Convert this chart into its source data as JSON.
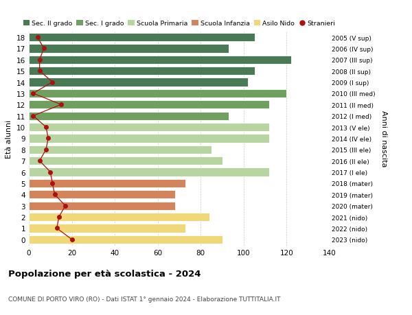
{
  "ages": [
    18,
    17,
    16,
    15,
    14,
    13,
    12,
    11,
    10,
    9,
    8,
    7,
    6,
    5,
    4,
    3,
    2,
    1,
    0
  ],
  "bar_values": [
    105,
    93,
    122,
    105,
    102,
    120,
    112,
    93,
    112,
    112,
    85,
    90,
    112,
    73,
    68,
    68,
    84,
    73,
    90
  ],
  "bar_colors": [
    "#4a7a55",
    "#4a7a55",
    "#4a7a55",
    "#4a7a55",
    "#4a7a55",
    "#6fa060",
    "#6fa060",
    "#6fa060",
    "#b8d4a0",
    "#b8d4a0",
    "#b8d4a0",
    "#b8d4a0",
    "#b8d4a0",
    "#d4845a",
    "#d4845a",
    "#d4845a",
    "#f0d878",
    "#f0d878",
    "#f0d878"
  ],
  "stranieri": [
    4,
    7,
    5,
    5,
    11,
    2,
    15,
    2,
    8,
    9,
    8,
    5,
    10,
    11,
    12,
    17,
    14,
    13,
    20
  ],
  "right_labels": [
    "2005 (V sup)",
    "2006 (IV sup)",
    "2007 (III sup)",
    "2008 (II sup)",
    "2009 (I sup)",
    "2010 (III med)",
    "2011 (II med)",
    "2012 (I med)",
    "2013 (V ele)",
    "2014 (IV ele)",
    "2015 (III ele)",
    "2016 (II ele)",
    "2017 (I ele)",
    "2018 (mater)",
    "2019 (mater)",
    "2020 (mater)",
    "2021 (nido)",
    "2022 (nido)",
    "2023 (nido)"
  ],
  "legend_labels": [
    "Sec. II grado",
    "Sec. I grado",
    "Scuola Primaria",
    "Scuola Infanzia",
    "Asilo Nido",
    "Stranieri"
  ],
  "legend_colors": [
    "#4a7a55",
    "#6fa060",
    "#b8d4a0",
    "#d4845a",
    "#f0d878",
    "#aa1111"
  ],
  "right_ylabel": "Anni di nascita",
  "left_ylabel": "Età alunni",
  "title": "Popolazione per età scolastica - 2024",
  "subtitle": "COMUNE DI PORTO VIRO (RO) - Dati ISTAT 1° gennaio 2024 - Elaborazione TUTTITALIA.IT",
  "xlim": [
    0,
    140
  ],
  "xticks": [
    0,
    20,
    40,
    60,
    80,
    100,
    120,
    140
  ],
  "background_color": "#ffffff",
  "grid_color": "#cccccc",
  "stranieri_color": "#aa1111",
  "bar_height": 0.75
}
